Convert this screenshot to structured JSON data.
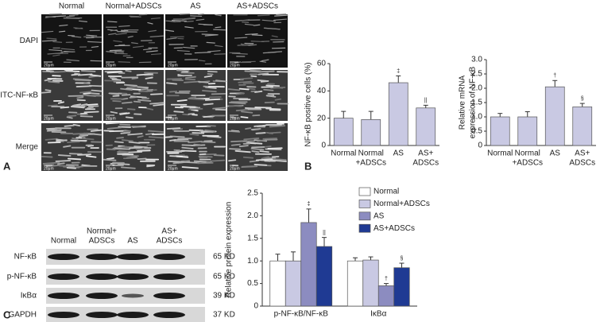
{
  "panel_labels": [
    "A",
    "B",
    "C"
  ],
  "panel_a": {
    "columns": [
      "Normal",
      "Normal+ADSCs",
      "AS",
      "AS+ADSCs"
    ],
    "rows": [
      "DAPI",
      "FITC-NF-κB",
      "Merge"
    ],
    "scale_bar": "20μm"
  },
  "panel_c_blot": {
    "columns": [
      [
        "Normal"
      ],
      [
        "Normal+",
        "ADSCs"
      ],
      [
        "AS"
      ],
      [
        "AS+",
        "ADSCs"
      ]
    ],
    "rows": [
      {
        "name": "NF-κB",
        "size": "65 KD"
      },
      {
        "name": "p-NF-κB",
        "size": "65 KD"
      },
      {
        "name": "IκBα",
        "size": "39 KD"
      },
      {
        "name": "GAPDH",
        "size": "37 KD"
      }
    ]
  },
  "chart_data": [
    {
      "type": "bar",
      "y_label": [
        "NF-κB positive cells (%)"
      ],
      "categories": [
        [
          "Normal"
        ],
        [
          "Normal",
          "+ADSCs"
        ],
        [
          "AS"
        ],
        [
          "AS+",
          "ADSCs"
        ]
      ],
      "series": [
        {
          "color": "#c9c9e3",
          "values": [
            20,
            19,
            46,
            27.5
          ],
          "errors": [
            5,
            6,
            5,
            2
          ],
          "markers": [
            null,
            null,
            "‡",
            "||"
          ]
        }
      ],
      "ylim": [
        0,
        60
      ],
      "yticks": [
        0,
        20,
        40,
        60
      ]
    },
    {
      "type": "bar",
      "y_label": [
        "Relative mRNA",
        "expression of NF-κB"
      ],
      "categories": [
        [
          "Normal"
        ],
        [
          "Normal",
          "+ADSCs"
        ],
        [
          "AS"
        ],
        [
          "AS+",
          "ADSCs"
        ]
      ],
      "series": [
        {
          "color": "#c9c9e3",
          "values": [
            1.0,
            1.0,
            2.05,
            1.35
          ],
          "errors": [
            0.12,
            0.18,
            0.22,
            0.12
          ],
          "markers": [
            null,
            null,
            "†",
            "§"
          ]
        }
      ],
      "ylim": [
        0,
        3
      ],
      "yticks": [
        0,
        0.5,
        {
          "value": 1,
          "label": "1.0"
        },
        1.5,
        {
          "value": 2,
          "label": "2.0"
        },
        2.5,
        {
          "value": 3,
          "label": "3.0"
        }
      ]
    },
    {
      "type": "bar",
      "y_label": [
        "Relative protein expression"
      ],
      "categories": [
        [
          "p-NF-κB/NF-κB"
        ],
        [
          "IκBα"
        ]
      ],
      "series": [
        {
          "name": "Normal",
          "color": "#ffffff",
          "values": [
            1.0,
            1.0
          ],
          "errors": [
            0.15,
            0.07
          ],
          "markers": [
            null,
            null
          ]
        },
        {
          "name": "Normal+ADSCs",
          "color": "#c9c9e3",
          "values": [
            1.0,
            1.02
          ],
          "errors": [
            0.2,
            0.07
          ],
          "markers": [
            null,
            null
          ]
        },
        {
          "name": "AS",
          "color": "#8c8cc0",
          "values": [
            1.85,
            0.45
          ],
          "errors": [
            0.3,
            0.05
          ],
          "markers": [
            "‡",
            "†"
          ]
        },
        {
          "name": "AS+ADSCs",
          "color": "#1f3a93",
          "values": [
            1.32,
            0.85
          ],
          "errors": [
            0.2,
            0.1
          ],
          "markers": [
            "||",
            "§"
          ]
        }
      ],
      "ylim": [
        0,
        2.5
      ],
      "yticks": [
        0,
        0.5,
        {
          "value": 1,
          "label": "1.0"
        },
        1.5,
        {
          "value": 2,
          "label": "2.0"
        },
        2.5
      ],
      "legend": "top-right"
    }
  ]
}
